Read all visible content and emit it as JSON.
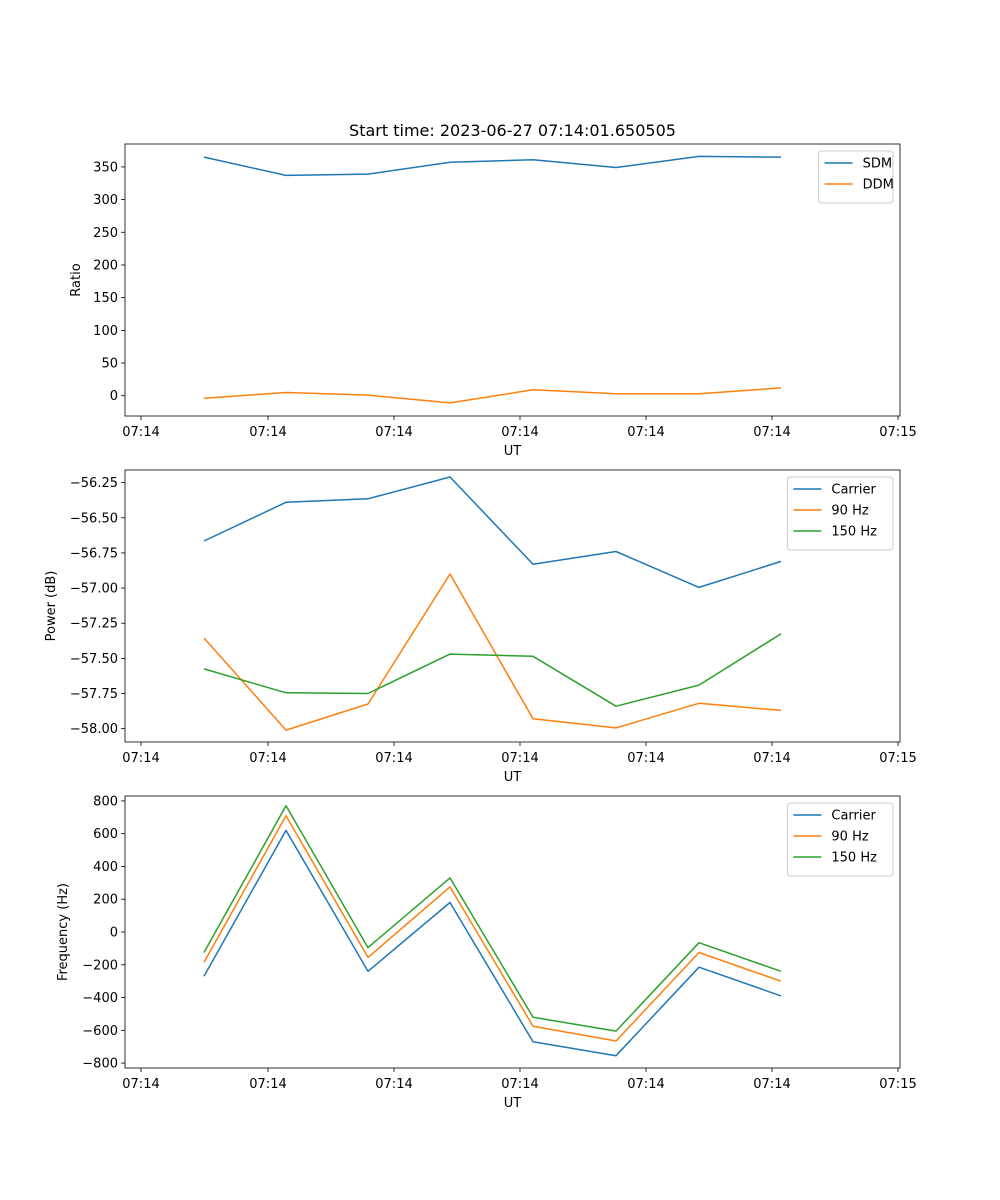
{
  "figure": {
    "title": "Start time: 2023-06-27 07:14:01.650505"
  },
  "chart_data": [
    {
      "type": "line",
      "xlabel": "UT",
      "ylabel": "Ratio",
      "x_ticks": [
        "07:14",
        "07:14",
        "07:14",
        "07:14",
        "07:14",
        "07:14",
        "07:15"
      ],
      "y_ticks": [
        0,
        50,
        100,
        150,
        200,
        250,
        300,
        350
      ],
      "ylim": [
        -31,
        385
      ],
      "legend_position": "top-right",
      "series": [
        {
          "name": "SDM",
          "color": "#1f77b4",
          "values": [
            365,
            337,
            339,
            357,
            361,
            349,
            366,
            365
          ]
        },
        {
          "name": "DDM",
          "color": "#ff7f0e",
          "values": [
            -4,
            5,
            1,
            -11,
            9,
            3,
            3,
            12
          ]
        }
      ]
    },
    {
      "type": "line",
      "xlabel": "UT",
      "ylabel": "Power (dB)",
      "x_ticks": [
        "07:14",
        "07:14",
        "07:14",
        "07:14",
        "07:14",
        "07:14",
        "07:15"
      ],
      "y_ticks": [
        -58.0,
        -57.75,
        -57.5,
        -57.25,
        -57.0,
        -56.75,
        -56.5,
        -56.25
      ],
      "y_tick_labels": [
        "−58.00",
        "−57.75",
        "−57.50",
        "−57.25",
        "−57.00",
        "−56.75",
        "−56.50",
        "−56.25"
      ],
      "ylim": [
        -58.095,
        -56.16
      ],
      "legend_position": "top-right",
      "series": [
        {
          "name": "Carrier",
          "color": "#1f77b4",
          "values": [
            -56.665,
            -56.39,
            -56.365,
            -56.21,
            -56.83,
            -56.74,
            -56.995,
            -56.81
          ]
        },
        {
          "name": "90 Hz",
          "color": "#ff7f0e",
          "values": [
            -57.355,
            -58.01,
            -57.825,
            -56.9,
            -57.93,
            -57.995,
            -57.82,
            -57.87
          ]
        },
        {
          "name": "150 Hz",
          "color": "#2ca02c",
          "values": [
            -57.575,
            -57.745,
            -57.75,
            -57.47,
            -57.485,
            -57.84,
            -57.69,
            -57.325
          ]
        }
      ]
    },
    {
      "type": "line",
      "xlabel": "UT",
      "ylabel": "Frequency (Hz)",
      "x_ticks": [
        "07:14",
        "07:14",
        "07:14",
        "07:14",
        "07:14",
        "07:14",
        "07:15"
      ],
      "y_ticks": [
        -800,
        -600,
        -400,
        -200,
        0,
        200,
        400,
        600,
        800
      ],
      "y_tick_labels": [
        "−800",
        "−600",
        "−400",
        "−200",
        "0",
        "200",
        "400",
        "600",
        "800"
      ],
      "ylim": [
        -830,
        830
      ],
      "legend_position": "top-right",
      "series": [
        {
          "name": "Carrier",
          "color": "#1f77b4",
          "values": [
            -270,
            620,
            -240,
            180,
            -670,
            -755,
            -215,
            -390
          ]
        },
        {
          "name": "90 Hz",
          "color": "#ff7f0e",
          "values": [
            -185,
            710,
            -155,
            275,
            -575,
            -665,
            -125,
            -300
          ]
        },
        {
          "name": "150 Hz",
          "color": "#2ca02c",
          "values": [
            -125,
            770,
            -95,
            330,
            -520,
            -605,
            -65,
            -240
          ]
        }
      ]
    }
  ]
}
